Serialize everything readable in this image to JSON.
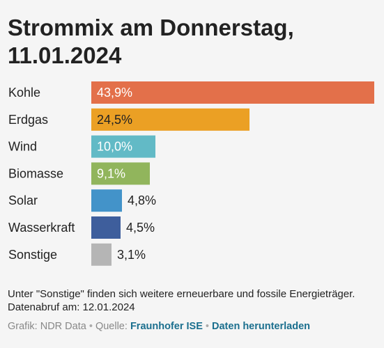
{
  "header": {
    "title_line1": "Strommix am Donnerstag,",
    "title_line2": "11.01.2024"
  },
  "chart_data": {
    "type": "bar",
    "orientation": "horizontal",
    "title": "Strommix am Donnerstag, 11.01.2024",
    "categories": [
      "Kohle",
      "Erdgas",
      "Wind",
      "Biomasse",
      "Solar",
      "Wasserkraft",
      "Sonstige"
    ],
    "values": [
      43.9,
      24.5,
      10.0,
      9.1,
      4.8,
      4.5,
      3.1
    ],
    "value_labels": [
      "43,9%",
      "24,5%",
      "10,0%",
      "9,1%",
      "4,8%",
      "4,5%",
      "3,1%"
    ],
    "colors": [
      "#e3704a",
      "#eba024",
      "#62bac6",
      "#91b55c",
      "#4393c9",
      "#3e5e9c",
      "#b5b5b5"
    ],
    "label_colors": [
      "#ffffff",
      "#222222",
      "#ffffff",
      "#ffffff",
      "#222222",
      "#222222",
      "#222222"
    ],
    "xlim": [
      0,
      43.9
    ],
    "grid": false,
    "legend": "none"
  },
  "footer": {
    "note": "Unter \"Sonstige\" finden sich weitere erneuerbare und fossile Energieträger. Datenabruf am: 12.01.2024",
    "credit": "Grafik: NDR Data",
    "separator": "•",
    "source_label": "Quelle:",
    "source_link": "Fraunhofer ISE",
    "download_link": "Daten herunterladen"
  }
}
